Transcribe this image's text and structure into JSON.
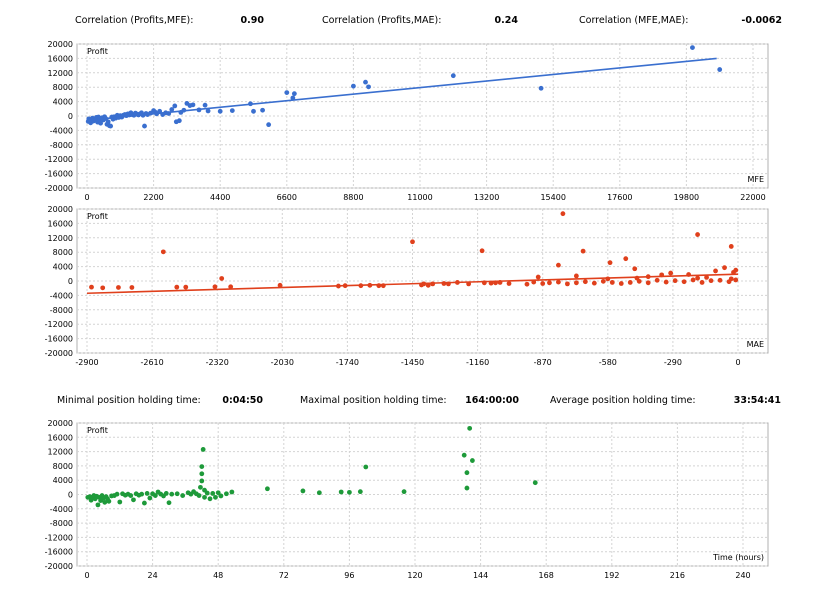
{
  "correlations": [
    {
      "label": "Correlation (Profits,MFE):",
      "value": "0.90"
    },
    {
      "label": "Correlation (Profits,MAE):",
      "value": "0.24"
    },
    {
      "label": "Correlation (MFE,MAE):",
      "value": "-0.0062"
    }
  ],
  "holding": [
    {
      "label": "Minimal position holding time:",
      "value": "0:04:50"
    },
    {
      "label": "Maximal position holding time:",
      "value": "164:00:00"
    },
    {
      "label": "Average position holding time:",
      "value": "33:54:41"
    }
  ],
  "colors": {
    "mfe": "#3a6fcf",
    "mae": "#e0401c",
    "time": "#1e9a3a",
    "grid": "#d4d4d4",
    "frame": "#b0b0b0"
  },
  "chart_data": [
    {
      "type": "scatter",
      "ylabel": "Profit",
      "xlabel": "MFE",
      "color": "#3a6fcf",
      "xlim": [
        0,
        22000
      ],
      "ylim": [
        -20000,
        20000
      ],
      "xticks": [
        "0",
        "2200",
        "4400",
        "6600",
        "8800",
        "11000",
        "13200",
        "15400",
        "17600",
        "19800",
        "22000"
      ],
      "yticks": [
        "20000",
        "16000",
        "12000",
        "8000",
        "4000",
        "0",
        "-4000",
        "-8000",
        "-12000",
        "-16000",
        "-20000"
      ],
      "trendline": [
        [
          0,
          -1200
        ],
        [
          20800,
          16000
        ]
      ],
      "points": [
        [
          40,
          -1500
        ],
        [
          60,
          -800
        ],
        [
          90,
          -1300
        ],
        [
          120,
          -1900
        ],
        [
          150,
          -1100
        ],
        [
          180,
          -600
        ],
        [
          210,
          -1400
        ],
        [
          240,
          -900
        ],
        [
          280,
          -1200
        ],
        [
          310,
          -400
        ],
        [
          350,
          -1700
        ],
        [
          380,
          -300
        ],
        [
          420,
          -900
        ],
        [
          450,
          -2000
        ],
        [
          500,
          -500
        ],
        [
          540,
          -1100
        ],
        [
          580,
          -200
        ],
        [
          620,
          -700
        ],
        [
          660,
          -2300
        ],
        [
          700,
          -1600
        ],
        [
          740,
          -2700
        ],
        [
          780,
          -2800
        ],
        [
          820,
          -300
        ],
        [
          860,
          -900
        ],
        [
          900,
          -200
        ],
        [
          950,
          -600
        ],
        [
          1000,
          200
        ],
        [
          1050,
          -400
        ],
        [
          1100,
          100
        ],
        [
          1150,
          -300
        ],
        [
          1200,
          200
        ],
        [
          1250,
          400
        ],
        [
          1300,
          100
        ],
        [
          1350,
          600
        ],
        [
          1400,
          300
        ],
        [
          1450,
          900
        ],
        [
          1500,
          400
        ],
        [
          1550,
          200
        ],
        [
          1600,
          800
        ],
        [
          1650,
          500
        ],
        [
          1700,
          300
        ],
        [
          1750,
          600
        ],
        [
          1800,
          900
        ],
        [
          1850,
          200
        ],
        [
          1900,
          -2800
        ],
        [
          1950,
          700
        ],
        [
          2000,
          400
        ],
        [
          2100,
          800
        ],
        [
          2200,
          1500
        ],
        [
          2250,
          1100
        ],
        [
          2300,
          600
        ],
        [
          2400,
          1300
        ],
        [
          2500,
          400
        ],
        [
          2600,
          900
        ],
        [
          2700,
          700
        ],
        [
          2800,
          1800
        ],
        [
          2900,
          2800
        ],
        [
          2950,
          -1600
        ],
        [
          3050,
          -1300
        ],
        [
          3100,
          1000
        ],
        [
          3200,
          1600
        ],
        [
          3300,
          3500
        ],
        [
          3400,
          2900
        ],
        [
          3500,
          3100
        ],
        [
          3700,
          1700
        ],
        [
          3900,
          3000
        ],
        [
          4000,
          1400
        ],
        [
          4400,
          1300
        ],
        [
          4800,
          1500
        ],
        [
          5400,
          3400
        ],
        [
          5500,
          1300
        ],
        [
          5800,
          1600
        ],
        [
          6000,
          -2400
        ],
        [
          6600,
          6500
        ],
        [
          6800,
          5000
        ],
        [
          6850,
          6200
        ],
        [
          8800,
          8300
        ],
        [
          9200,
          9400
        ],
        [
          9300,
          8100
        ],
        [
          12100,
          11200
        ],
        [
          15000,
          7700
        ],
        [
          20000,
          19000
        ],
        [
          20900,
          12900
        ]
      ]
    },
    {
      "type": "scatter",
      "ylabel": "Profit",
      "xlabel": "MAE",
      "color": "#e0401c",
      "xlim": [
        -2900,
        0
      ],
      "ylim": [
        -20000,
        20000
      ],
      "xticks": [
        "-2900",
        "-2610",
        "-2320",
        "-2030",
        "-1740",
        "-1450",
        "-1160",
        "-870",
        "-580",
        "-290",
        "0"
      ],
      "yticks": [
        "20000",
        "16000",
        "12000",
        "8000",
        "4000",
        "0",
        "-4000",
        "-8000",
        "-12000",
        "-16000",
        "-20000"
      ],
      "trendline": [
        [
          -2900,
          -3400
        ],
        [
          0,
          1900
        ]
      ],
      "points": [
        [
          -2880,
          -1700
        ],
        [
          -2830,
          -1900
        ],
        [
          -2760,
          -1800
        ],
        [
          -2700,
          -1800
        ],
        [
          -2560,
          8100
        ],
        [
          -2500,
          -1700
        ],
        [
          -2460,
          -1700
        ],
        [
          -2330,
          -1600
        ],
        [
          -2300,
          700
        ],
        [
          -2260,
          -1600
        ],
        [
          -2040,
          -1200
        ],
        [
          -1780,
          -1400
        ],
        [
          -1750,
          -1300
        ],
        [
          -1680,
          -1300
        ],
        [
          -1640,
          -1200
        ],
        [
          -1600,
          -1300
        ],
        [
          -1580,
          -1300
        ],
        [
          -1410,
          -1100
        ],
        [
          -1400,
          -800
        ],
        [
          -1380,
          -1200
        ],
        [
          -1360,
          -800
        ],
        [
          -1310,
          -700
        ],
        [
          -1290,
          -800
        ],
        [
          -1250,
          -400
        ],
        [
          -1200,
          -800
        ],
        [
          -1130,
          -500
        ],
        [
          -1100,
          -600
        ],
        [
          -1080,
          -500
        ],
        [
          -1060,
          -400
        ],
        [
          -1020,
          -700
        ],
        [
          -940,
          -900
        ],
        [
          -910,
          -300
        ],
        [
          -870,
          -700
        ],
        [
          -840,
          -500
        ],
        [
          -800,
          -300
        ],
        [
          -760,
          -800
        ],
        [
          -720,
          -500
        ],
        [
          -680,
          -200
        ],
        [
          -640,
          -600
        ],
        [
          -600,
          -100
        ],
        [
          -560,
          -400
        ],
        [
          -520,
          -700
        ],
        [
          -480,
          -400
        ],
        [
          -440,
          -100
        ],
        [
          -400,
          -500
        ],
        [
          -360,
          200
        ],
        [
          -320,
          -300
        ],
        [
          -280,
          100
        ],
        [
          -240,
          -200
        ],
        [
          -200,
          300
        ],
        [
          -160,
          -400
        ],
        [
          -120,
          100
        ],
        [
          -80,
          200
        ],
        [
          -40,
          -200
        ],
        [
          -10,
          300
        ],
        [
          -890,
          1100
        ],
        [
          -720,
          1400
        ],
        [
          -580,
          600
        ],
        [
          -450,
          800
        ],
        [
          -400,
          1200
        ],
        [
          -340,
          1700
        ],
        [
          -300,
          2200
        ],
        [
          -220,
          1800
        ],
        [
          -180,
          800
        ],
        [
          -140,
          1000
        ],
        [
          -100,
          2800
        ],
        [
          -60,
          3700
        ],
        [
          -30,
          600
        ],
        [
          -20,
          2400
        ],
        [
          -1450,
          10900
        ],
        [
          -1140,
          8400
        ],
        [
          -800,
          4400
        ],
        [
          -780,
          18700
        ],
        [
          -690,
          8300
        ],
        [
          -570,
          5100
        ],
        [
          -500,
          6200
        ],
        [
          -460,
          3400
        ],
        [
          -180,
          12900
        ],
        [
          -30,
          9600
        ],
        [
          -10,
          3000
        ]
      ]
    },
    {
      "type": "scatter",
      "ylabel": "Profit",
      "xlabel": "Time (hours)",
      "color": "#1e9a3a",
      "xlim": [
        0,
        240
      ],
      "ylim": [
        -20000,
        20000
      ],
      "xticks": [
        "0",
        "24",
        "48",
        "72",
        "96",
        "120",
        "144",
        "168",
        "192",
        "216",
        "240"
      ],
      "yticks": [
        "20000",
        "16000",
        "12000",
        "8000",
        "4000",
        "0",
        "-4000",
        "-8000",
        "-12000",
        "-16000",
        "-20000"
      ],
      "points": [
        [
          0.3,
          -800
        ],
        [
          1,
          -600
        ],
        [
          1.5,
          -1600
        ],
        [
          2,
          -900
        ],
        [
          2.5,
          -300
        ],
        [
          3,
          -1200
        ],
        [
          3.5,
          -500
        ],
        [
          4,
          -2900
        ],
        [
          4.5,
          -800
        ],
        [
          5,
          -1700
        ],
        [
          5.5,
          -300
        ],
        [
          6,
          -1000
        ],
        [
          6.5,
          -2200
        ],
        [
          7,
          -600
        ],
        [
          7.5,
          -1200
        ],
        [
          8,
          -1900
        ],
        [
          9,
          -400
        ],
        [
          10,
          -300
        ],
        [
          11,
          100
        ],
        [
          12,
          -2100
        ],
        [
          13,
          200
        ],
        [
          14,
          -200
        ],
        [
          15,
          100
        ],
        [
          16,
          -300
        ],
        [
          17,
          -1500
        ],
        [
          18,
          200
        ],
        [
          19,
          -200
        ],
        [
          20,
          100
        ],
        [
          21,
          -2400
        ],
        [
          22,
          300
        ],
        [
          23,
          -1000
        ],
        [
          24,
          200
        ],
        [
          25,
          -300
        ],
        [
          26,
          700
        ],
        [
          27,
          100
        ],
        [
          28,
          -400
        ],
        [
          29,
          300
        ],
        [
          30,
          -2300
        ],
        [
          31,
          100
        ],
        [
          33,
          200
        ],
        [
          35,
          -300
        ],
        [
          37,
          500
        ],
        [
          38,
          100
        ],
        [
          39,
          800
        ],
        [
          40,
          200
        ],
        [
          41,
          -300
        ],
        [
          41.5,
          2000
        ],
        [
          42,
          3800
        ],
        [
          42,
          5800
        ],
        [
          42,
          7800
        ],
        [
          42.5,
          12600
        ],
        [
          43,
          1200
        ],
        [
          43,
          -800
        ],
        [
          44,
          400
        ],
        [
          45,
          -1200
        ],
        [
          46,
          300
        ],
        [
          47,
          -800
        ],
        [
          48,
          500
        ],
        [
          49,
          -400
        ],
        [
          51,
          200
        ],
        [
          53,
          700
        ],
        [
          66,
          1600
        ],
        [
          79,
          1000
        ],
        [
          85,
          500
        ],
        [
          93,
          700
        ],
        [
          96,
          600
        ],
        [
          100,
          800
        ],
        [
          102,
          7700
        ],
        [
          116,
          800
        ],
        [
          138,
          11000
        ],
        [
          139,
          6100
        ],
        [
          139,
          1800
        ],
        [
          140,
          18500
        ],
        [
          141,
          9500
        ],
        [
          164,
          3300
        ]
      ]
    }
  ]
}
